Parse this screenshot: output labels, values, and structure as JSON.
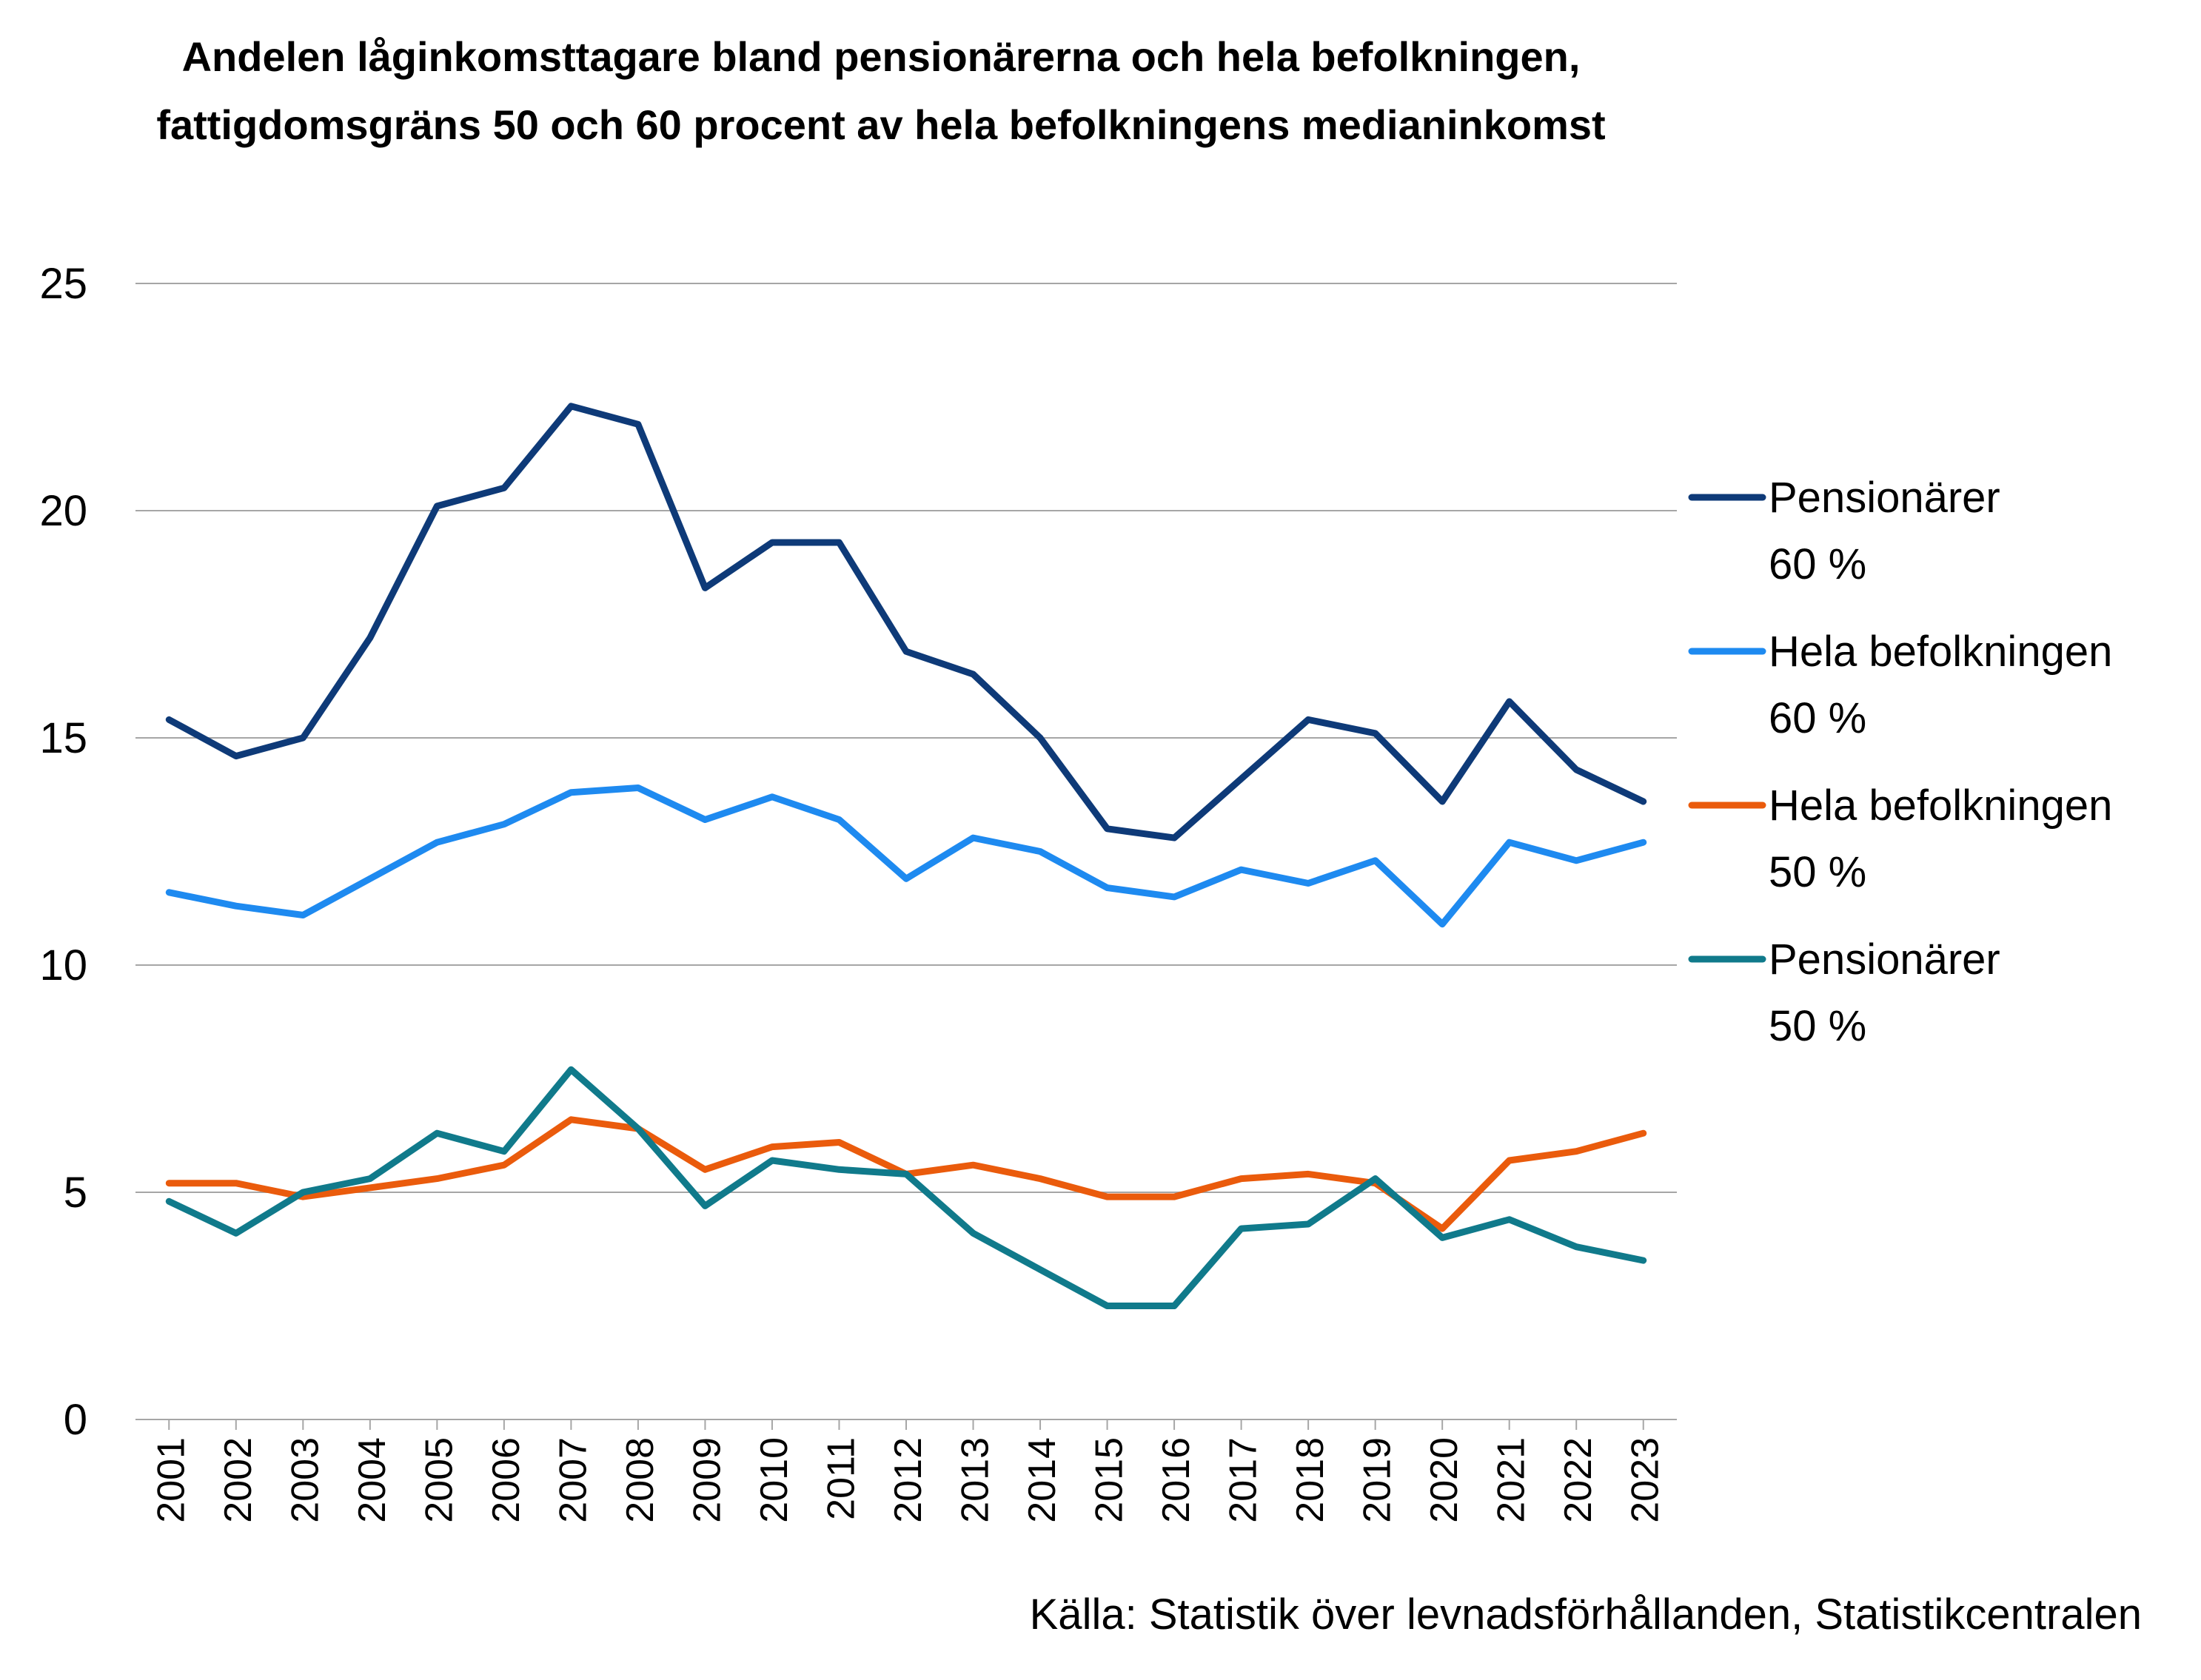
{
  "chart_data": {
    "type": "line",
    "title": "Andelen låginkomsttagare bland pensionärerna och hela befolkningen,",
    "subtitle": "fattigdomsgräns 50 och 60 procent av hela befolkningens medianinkomst",
    "xlabel": "",
    "ylabel": "",
    "ylim": [
      0,
      25
    ],
    "yticks": [
      "0",
      "5",
      "10",
      "15",
      "20",
      "25"
    ],
    "grid": true,
    "legend_position": "right",
    "categories": [
      "2001",
      "2002",
      "2003",
      "2004",
      "2005",
      "2006",
      "2007",
      "2008",
      "2009",
      "2010",
      "2011",
      "2012",
      "2013",
      "2014",
      "2015",
      "2016",
      "2017",
      "2018",
      "2019",
      "2020",
      "2021",
      "2022",
      "2023"
    ],
    "series": [
      {
        "name": "Pensionärer 60 %",
        "name_lines": [
          "Pensionärer",
          "60 %"
        ],
        "color": "#0e3a78",
        "values": [
          15.4,
          14.6,
          15.0,
          17.2,
          20.1,
          20.5,
          22.3,
          21.9,
          18.3,
          19.3,
          19.3,
          16.9,
          16.4,
          15.0,
          13.0,
          12.8,
          14.1,
          15.4,
          15.1,
          13.6,
          15.8,
          14.3,
          13.6
        ]
      },
      {
        "name": "Hela befolkningen 60 %",
        "name_lines": [
          "Hela befolkningen",
          "60 %"
        ],
        "color": "#1e8af0",
        "values": [
          11.6,
          11.3,
          11.1,
          11.9,
          12.7,
          13.1,
          13.8,
          13.9,
          13.2,
          13.7,
          13.2,
          11.9,
          12.8,
          12.5,
          11.7,
          11.5,
          12.1,
          11.8,
          12.3,
          10.9,
          12.7,
          12.3,
          12.7
        ]
      },
      {
        "name": "Hela befolkningen 50 %",
        "name_lines": [
          "Hela befolkningen",
          "50 %"
        ],
        "color": "#ea5b0c",
        "values": [
          5.2,
          5.2,
          4.9,
          5.1,
          5.3,
          5.6,
          6.6,
          6.4,
          5.5,
          6.0,
          6.1,
          5.4,
          5.6,
          5.3,
          4.9,
          4.9,
          5.3,
          5.4,
          5.2,
          4.2,
          5.7,
          5.9,
          6.3
        ]
      },
      {
        "name": "Pensionärer 50 %",
        "name_lines": [
          "Pensionärer",
          "50 %"
        ],
        "color": "#107a8b",
        "values": [
          4.8,
          4.1,
          5.0,
          5.3,
          6.3,
          5.9,
          7.7,
          6.4,
          4.7,
          5.7,
          5.5,
          5.4,
          4.1,
          3.3,
          2.5,
          2.5,
          4.2,
          4.3,
          5.3,
          4.0,
          4.4,
          3.8,
          3.5
        ]
      }
    ],
    "source": "Källa: Statistik över levnadsförhållanden, Statistikcentralen"
  }
}
